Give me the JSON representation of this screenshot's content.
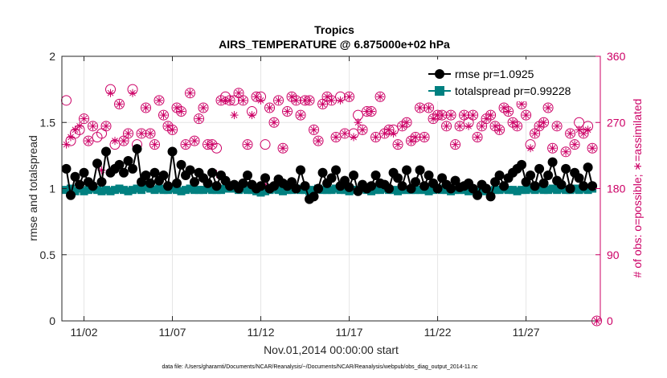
{
  "chart_data": {
    "type": "line",
    "title": "Tropics",
    "subtitle": "AIRS_TEMPERATURE @ 6.875000e+02 hPa",
    "xlabel": "Nov.01,2014 00:00:00 start",
    "ylabel": "rmse and totalspread",
    "ylabel_right": "# of obs: o=possible; ∗=assimilated",
    "xlim": [
      0.75,
      31.2
    ],
    "ylim": [
      0,
      2
    ],
    "ylim_right": [
      0,
      360
    ],
    "x_ticks": [
      2,
      7,
      12,
      17,
      22,
      27
    ],
    "x_tick_labels": [
      "11/02",
      "11/07",
      "11/12",
      "11/17",
      "11/22",
      "11/27"
    ],
    "y_ticks": [
      0,
      0.5,
      1,
      1.5,
      2
    ],
    "y_tick_labels": [
      "0",
      "0.5",
      "1",
      "1.5",
      "2"
    ],
    "y_right_ticks": [
      0,
      90,
      180,
      270,
      360
    ],
    "y_right_tick_labels": [
      "0",
      "90",
      "180",
      "270",
      "360"
    ],
    "legend_position": "top-right",
    "series": [
      {
        "name": "rmse pr=1.0925",
        "color": "#000000",
        "marker": "circle",
        "axis": "left",
        "x": [
          1.0,
          1.25,
          1.5,
          1.75,
          2.0,
          2.25,
          2.5,
          2.75,
          3.0,
          3.25,
          3.5,
          3.75,
          4.0,
          4.25,
          4.5,
          4.75,
          5.0,
          5.25,
          5.5,
          5.75,
          6.0,
          6.25,
          6.5,
          6.75,
          7.0,
          7.25,
          7.5,
          7.75,
          8.0,
          8.25,
          8.5,
          8.75,
          9.0,
          9.25,
          9.5,
          9.75,
          10.0,
          10.25,
          10.5,
          10.75,
          11.0,
          11.25,
          11.5,
          11.75,
          12.0,
          12.25,
          12.5,
          12.75,
          13.0,
          13.25,
          13.5,
          13.75,
          14.0,
          14.25,
          14.5,
          14.75,
          15.0,
          15.25,
          15.5,
          15.75,
          16.0,
          16.25,
          16.5,
          16.75,
          17.0,
          17.25,
          17.5,
          17.75,
          18.0,
          18.25,
          18.5,
          18.75,
          19.0,
          19.25,
          19.5,
          19.75,
          20.0,
          20.25,
          20.5,
          20.75,
          21.0,
          21.25,
          21.5,
          21.75,
          22.0,
          22.25,
          22.5,
          22.75,
          23.0,
          23.25,
          23.5,
          23.75,
          24.0,
          24.25,
          24.5,
          24.75,
          25.0,
          25.25,
          25.5,
          25.75,
          26.0,
          26.25,
          26.5,
          26.75,
          27.0,
          27.25,
          27.5,
          27.75,
          28.0,
          28.25,
          28.5,
          28.75,
          29.0,
          29.25,
          29.5,
          29.75,
          30.0,
          30.25,
          30.5,
          30.75
        ],
        "y": [
          1.15,
          0.95,
          1.09,
          1.03,
          1.12,
          1.05,
          1.02,
          1.19,
          1.05,
          1.28,
          1.12,
          1.15,
          1.18,
          1.12,
          1.21,
          1.15,
          1.3,
          1.05,
          1.1,
          1.04,
          1.12,
          1.06,
          1.1,
          1.02,
          1.28,
          1.04,
          1.18,
          1.1,
          1.14,
          1.05,
          1.12,
          1.08,
          1.04,
          1.12,
          1.02,
          1.1,
          1.06,
          1.02,
          1.03,
          1.0,
          1.04,
          1.1,
          1.03,
          1.0,
          1.02,
          1.08,
          1.0,
          1.02,
          1.07,
          1.04,
          1.02,
          1.05,
          1.0,
          1.14,
          1.02,
          0.92,
          0.94,
          1.0,
          1.12,
          1.04,
          1.08,
          1.14,
          1.02,
          1.06,
          1.01,
          1.1,
          0.98,
          1.03,
          1.0,
          1.02,
          1.1,
          1.04,
          1.03,
          1.0,
          1.12,
          1.08,
          1.02,
          1.14,
          1.0,
          1.05,
          1.14,
          1.02,
          1.1,
          1.04,
          1.0,
          1.08,
          1.03,
          1.0,
          1.06,
          1.01,
          1.02,
          1.04,
          1.0,
          0.95,
          1.03,
          1.0,
          0.94,
          1.05,
          1.1,
          1.02,
          1.08,
          1.12,
          1.15,
          1.18,
          1.05,
          1.1,
          1.02,
          1.15,
          1.04,
          1.1,
          1.2,
          1.06,
          1.03,
          1.15,
          1.0,
          1.12,
          1.08,
          1.02,
          1.16,
          1.02
        ]
      },
      {
        "name": "totalspread pr=0.99228",
        "color": "#008080",
        "marker": "square",
        "axis": "left",
        "x": [
          1.0,
          1.25,
          1.5,
          1.75,
          2.0,
          2.25,
          2.5,
          2.75,
          3.0,
          3.25,
          3.5,
          3.75,
          4.0,
          4.25,
          4.5,
          4.75,
          5.0,
          5.25,
          5.5,
          5.75,
          6.0,
          6.25,
          6.5,
          6.75,
          7.0,
          7.25,
          7.5,
          7.75,
          8.0,
          8.25,
          8.5,
          8.75,
          9.0,
          9.25,
          9.5,
          9.75,
          10.0,
          10.25,
          10.5,
          10.75,
          11.0,
          11.25,
          11.5,
          11.75,
          12.0,
          12.25,
          12.5,
          12.75,
          13.0,
          13.25,
          13.5,
          13.75,
          14.0,
          14.25,
          14.5,
          14.75,
          15.0,
          15.25,
          15.5,
          15.75,
          16.0,
          16.25,
          16.5,
          16.75,
          17.0,
          17.25,
          17.5,
          17.75,
          18.0,
          18.25,
          18.5,
          18.75,
          19.0,
          19.25,
          19.5,
          19.75,
          20.0,
          20.25,
          20.5,
          20.75,
          21.0,
          21.25,
          21.5,
          21.75,
          22.0,
          22.25,
          22.5,
          22.75,
          23.0,
          23.25,
          23.5,
          23.75,
          24.0,
          24.25,
          24.5,
          24.75,
          25.0,
          25.25,
          25.5,
          25.75,
          26.0,
          26.25,
          26.5,
          26.75,
          27.0,
          27.25,
          27.5,
          27.75,
          28.0,
          28.25,
          28.5,
          28.75,
          29.0,
          29.25,
          29.5,
          29.75,
          30.0,
          30.25,
          30.5,
          30.75
        ],
        "y": [
          0.99,
          1.0,
          0.98,
          1.0,
          0.98,
          0.99,
          1.0,
          0.99,
          0.98,
          0.99,
          0.98,
          0.99,
          1.0,
          0.99,
          0.98,
          0.99,
          1.0,
          0.99,
          1.01,
          1.0,
          0.99,
          1.0,
          0.99,
          0.99,
          1.0,
          0.99,
          0.98,
          0.99,
          1.0,
          0.99,
          0.99,
          0.99,
          1.0,
          0.99,
          0.99,
          0.99,
          1.0,
          1.0,
          1.0,
          0.99,
          1.0,
          0.99,
          0.99,
          0.98,
          0.97,
          0.98,
          0.99,
          1.0,
          0.99,
          0.98,
          0.99,
          0.99,
          1.0,
          0.99,
          0.99,
          0.98,
          0.99,
          1.0,
          0.99,
          0.99,
          0.99,
          1.0,
          0.99,
          0.99,
          0.98,
          0.99,
          0.99,
          1.0,
          0.99,
          0.98,
          0.99,
          0.99,
          1.0,
          0.99,
          0.99,
          0.98,
          0.99,
          0.99,
          0.99,
          0.99,
          0.99,
          0.99,
          0.98,
          0.99,
          1.0,
          0.99,
          0.99,
          0.98,
          0.99,
          0.99,
          0.99,
          0.98,
          0.99,
          0.98,
          0.99,
          0.98,
          0.98,
          0.99,
          0.99,
          1.0,
          0.99,
          0.99,
          0.98,
          0.99,
          0.99,
          1.0,
          0.99,
          1.0,
          0.99,
          0.99,
          1.0,
          0.99,
          1.0,
          0.99,
          0.99,
          1.0,
          0.99,
          1.0,
          0.99,
          1.0
        ]
      },
      {
        "name": "possible",
        "color": "#cc0066",
        "marker": "open-circle",
        "axis": "right",
        "x": [
          1.0,
          1.25,
          1.5,
          1.75,
          2.0,
          2.25,
          2.5,
          2.75,
          3.0,
          3.25,
          3.5,
          3.75,
          4.0,
          4.25,
          4.5,
          4.75,
          5.0,
          5.25,
          5.5,
          5.75,
          6.0,
          6.25,
          6.5,
          6.75,
          7.0,
          7.25,
          7.5,
          7.75,
          8.0,
          8.25,
          8.5,
          8.75,
          9.0,
          9.25,
          9.5,
          9.75,
          10.0,
          10.25,
          10.5,
          10.75,
          11.0,
          11.25,
          11.5,
          11.75,
          12.0,
          12.25,
          12.5,
          12.75,
          13.0,
          13.25,
          13.5,
          13.75,
          14.0,
          14.25,
          14.5,
          14.75,
          15.0,
          15.25,
          15.5,
          15.75,
          16.0,
          16.25,
          16.5,
          16.75,
          17.0,
          17.25,
          17.5,
          17.75,
          18.0,
          18.25,
          18.5,
          18.75,
          19.0,
          19.25,
          19.5,
          19.75,
          20.0,
          20.25,
          20.5,
          20.75,
          21.0,
          21.25,
          21.5,
          21.75,
          22.0,
          22.25,
          22.5,
          22.75,
          23.0,
          23.25,
          23.5,
          23.75,
          24.0,
          24.25,
          24.5,
          24.75,
          25.0,
          25.25,
          25.5,
          25.75,
          26.0,
          26.25,
          26.5,
          26.75,
          27.0,
          27.25,
          27.5,
          27.75,
          28.0,
          28.25,
          28.5,
          28.75,
          29.0,
          29.25,
          29.5,
          29.75,
          30.0,
          30.25,
          30.5,
          30.75,
          31.0
        ],
        "y": [
          300,
          245,
          255,
          260,
          275,
          245,
          265,
          250,
          255,
          265,
          315,
          240,
          295,
          245,
          255,
          315,
          240,
          255,
          290,
          255,
          240,
          300,
          280,
          265,
          260,
          290,
          285,
          240,
          310,
          245,
          275,
          290,
          240,
          240,
          235,
          300,
          305,
          300,
          300,
          310,
          300,
          240,
          285,
          305,
          305,
          240,
          290,
          270,
          300,
          235,
          285,
          305,
          300,
          280,
          300,
          300,
          260,
          245,
          295,
          305,
          300,
          250,
          305,
          255,
          305,
          255,
          280,
          260,
          285,
          285,
          250,
          305,
          255,
          260,
          260,
          240,
          265,
          270,
          245,
          250,
          290,
          250,
          290,
          275,
          280,
          280,
          265,
          280,
          240,
          265,
          280,
          270,
          280,
          250,
          265,
          275,
          280,
          265,
          260,
          290,
          285,
          270,
          265,
          295,
          280,
          240,
          255,
          265,
          270,
          290,
          235,
          265,
          320,
          230,
          255,
          240,
          270,
          255,
          265,
          235,
          0
        ]
      },
      {
        "name": "assimilated",
        "color": "#cc0066",
        "marker": "asterisk",
        "axis": "right",
        "x": [
          1.0,
          1.25,
          1.5,
          1.75,
          2.0,
          2.25,
          2.5,
          2.75,
          3.0,
          3.25,
          3.5,
          3.75,
          4.0,
          4.25,
          4.5,
          4.75,
          5.0,
          5.25,
          5.5,
          5.75,
          6.0,
          6.25,
          6.5,
          6.75,
          7.0,
          7.25,
          7.5,
          7.75,
          8.0,
          8.25,
          8.5,
          8.75,
          9.0,
          9.25,
          9.5,
          9.75,
          10.0,
          10.25,
          10.5,
          10.75,
          11.0,
          11.25,
          11.5,
          11.75,
          12.0,
          12.25,
          12.5,
          12.75,
          13.0,
          13.25,
          13.5,
          13.75,
          14.0,
          14.25,
          14.5,
          14.75,
          15.0,
          15.25,
          15.5,
          15.75,
          16.0,
          16.25,
          16.5,
          16.75,
          17.0,
          17.25,
          17.5,
          17.75,
          18.0,
          18.25,
          18.5,
          18.75,
          19.0,
          19.25,
          19.5,
          19.75,
          20.0,
          20.25,
          20.5,
          20.75,
          21.0,
          21.25,
          21.5,
          21.75,
          22.0,
          22.25,
          22.5,
          22.75,
          23.0,
          23.25,
          23.5,
          23.75,
          24.0,
          24.25,
          24.5,
          24.75,
          25.0,
          25.25,
          25.5,
          25.75,
          26.0,
          26.25,
          26.5,
          26.75,
          27.0,
          27.25,
          27.5,
          27.75,
          28.0,
          28.25,
          28.5,
          28.75,
          29.0,
          29.25,
          29.5,
          29.75,
          30.0,
          30.25,
          30.5,
          30.75,
          31.0
        ],
        "y": [
          240,
          250,
          260,
          265,
          275,
          245,
          265,
          215,
          205,
          265,
          310,
          245,
          295,
          245,
          255,
          310,
          235,
          255,
          290,
          255,
          240,
          300,
          280,
          265,
          260,
          290,
          285,
          240,
          310,
          245,
          275,
          290,
          240,
          240,
          200,
          300,
          300,
          300,
          280,
          310,
          300,
          240,
          280,
          305,
          300,
          185,
          290,
          270,
          300,
          235,
          285,
          305,
          300,
          280,
          300,
          300,
          260,
          245,
          295,
          305,
          300,
          250,
          300,
          255,
          305,
          250,
          270,
          260,
          285,
          285,
          250,
          305,
          255,
          260,
          255,
          240,
          265,
          270,
          245,
          250,
          290,
          250,
          290,
          275,
          280,
          280,
          265,
          280,
          240,
          265,
          280,
          265,
          280,
          250,
          265,
          275,
          280,
          265,
          260,
          290,
          285,
          270,
          265,
          295,
          280,
          235,
          255,
          265,
          270,
          290,
          235,
          265,
          315,
          230,
          255,
          240,
          260,
          255,
          260,
          235,
          0
        ]
      }
    ],
    "legend": [
      "rmse pr=1.0925",
      "totalspread pr=0.99228"
    ],
    "footer": "data file: /Users/gharamti/Documents/NCAR/Reanalysis/~/Documents/NCAR/Reanalysis/webpub/obs_diag_output_2014-11.nc"
  }
}
